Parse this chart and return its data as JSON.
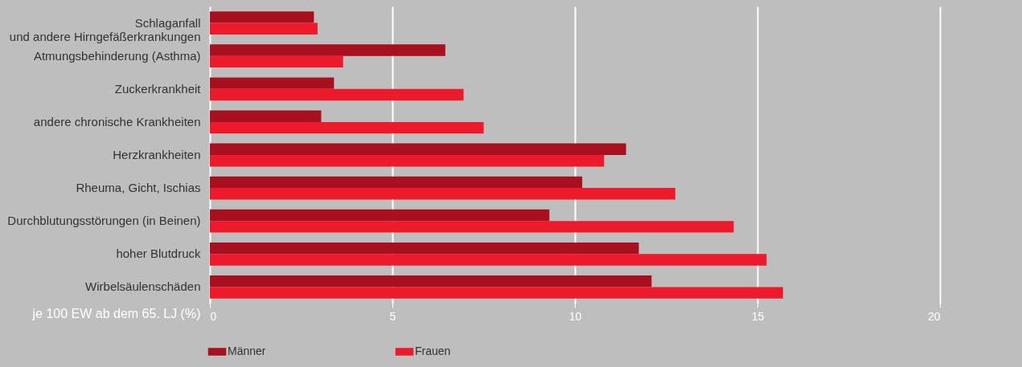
{
  "chart_data": {
    "type": "bar",
    "orientation": "horizontal",
    "categories": [
      "Schlaganfall\nund andere Hirngefäßerkrankungen",
      "Atmungsbehinderung (Asthma)",
      "Zuckerkrankheit",
      "andere chronische Krankheiten",
      "Herzkrankheiten",
      "Rheuma, Gicht, Ischias",
      "Durchblutungsstörungen (in Beinen)",
      "hoher Blutdruck",
      "Wirbelsäulenschäden"
    ],
    "series": [
      {
        "name": "Männer",
        "color": "#a8101f",
        "values": [
          2.85,
          6.45,
          3.4,
          3.05,
          11.4,
          10.2,
          9.3,
          11.75,
          12.1
        ]
      },
      {
        "name": "Frauen",
        "color": "#ec1a2b",
        "values": [
          2.95,
          3.65,
          6.95,
          7.5,
          10.8,
          12.75,
          14.35,
          15.25,
          15.7
        ]
      }
    ],
    "xlabel": "je 100 EW ab dem 65. LJ (%)",
    "xlim": [
      0,
      20
    ],
    "xticks": [
      0,
      5,
      10,
      15,
      20
    ],
    "grid": "x",
    "legend": "bottom"
  }
}
